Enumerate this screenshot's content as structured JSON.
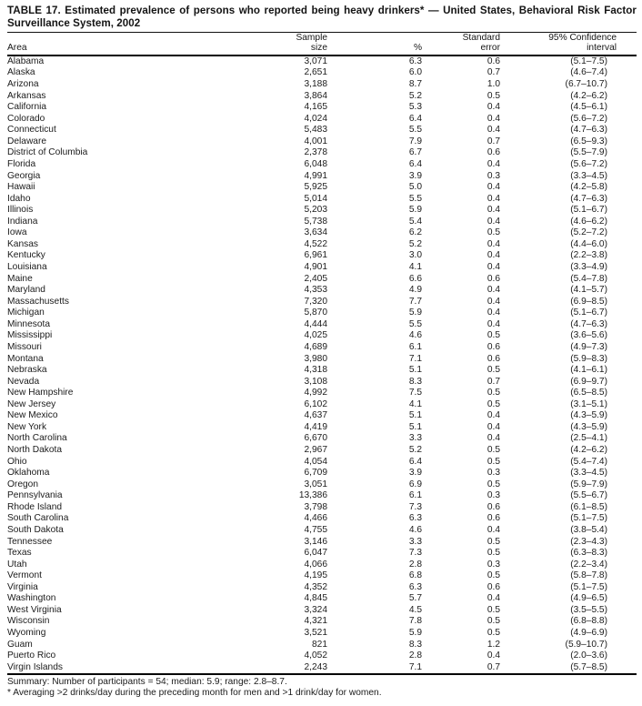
{
  "table": {
    "title_line1": "TABLE 17. Estimated prevalence of persons who reported being heavy drinkers* — United States, Behavioral Risk Factor",
    "title_line2": "Surveillance System, 2002",
    "columns": {
      "area": "Area",
      "sample_l1": "Sample",
      "sample_l2": "size",
      "percent": "%",
      "se_l1": "Standard",
      "se_l2": "error",
      "ci_l1": "95% Confidence",
      "ci_l2": "interval"
    },
    "rows": [
      {
        "area": "Alabama",
        "sample_size": "3,071",
        "percent": "6.3",
        "standard_error": "0.6",
        "confidence_interval": "(5.1–7.5)"
      },
      {
        "area": "Alaska",
        "sample_size": "2,651",
        "percent": "6.0",
        "standard_error": "0.7",
        "confidence_interval": "(4.6–7.4)"
      },
      {
        "area": "Arizona",
        "sample_size": "3,188",
        "percent": "8.7",
        "standard_error": "1.0",
        "confidence_interval": "(6.7–10.7)"
      },
      {
        "area": "Arkansas",
        "sample_size": "3,864",
        "percent": "5.2",
        "standard_error": "0.5",
        "confidence_interval": "(4.2–6.2)"
      },
      {
        "area": "California",
        "sample_size": "4,165",
        "percent": "5.3",
        "standard_error": "0.4",
        "confidence_interval": "(4.5–6.1)"
      },
      {
        "area": "Colorado",
        "sample_size": "4,024",
        "percent": "6.4",
        "standard_error": "0.4",
        "confidence_interval": "(5.6–7.2)"
      },
      {
        "area": "Connecticut",
        "sample_size": "5,483",
        "percent": "5.5",
        "standard_error": "0.4",
        "confidence_interval": "(4.7–6.3)"
      },
      {
        "area": "Delaware",
        "sample_size": "4,001",
        "percent": "7.9",
        "standard_error": "0.7",
        "confidence_interval": "(6.5–9.3)"
      },
      {
        "area": "District of Columbia",
        "sample_size": "2,378",
        "percent": "6.7",
        "standard_error": "0.6",
        "confidence_interval": "(5.5–7.9)"
      },
      {
        "area": "Florida",
        "sample_size": "6,048",
        "percent": "6.4",
        "standard_error": "0.4",
        "confidence_interval": "(5.6–7.2)"
      },
      {
        "area": "Georgia",
        "sample_size": "4,991",
        "percent": "3.9",
        "standard_error": "0.3",
        "confidence_interval": "(3.3–4.5)"
      },
      {
        "area": "Hawaii",
        "sample_size": "5,925",
        "percent": "5.0",
        "standard_error": "0.4",
        "confidence_interval": "(4.2–5.8)"
      },
      {
        "area": "Idaho",
        "sample_size": "5,014",
        "percent": "5.5",
        "standard_error": "0.4",
        "confidence_interval": "(4.7–6.3)"
      },
      {
        "area": "Illinois",
        "sample_size": "5,203",
        "percent": "5.9",
        "standard_error": "0.4",
        "confidence_interval": "(5.1–6.7)"
      },
      {
        "area": "Indiana",
        "sample_size": "5,738",
        "percent": "5.4",
        "standard_error": "0.4",
        "confidence_interval": "(4.6–6.2)"
      },
      {
        "area": "Iowa",
        "sample_size": "3,634",
        "percent": "6.2",
        "standard_error": "0.5",
        "confidence_interval": "(5.2–7.2)"
      },
      {
        "area": "Kansas",
        "sample_size": "4,522",
        "percent": "5.2",
        "standard_error": "0.4",
        "confidence_interval": "(4.4–6.0)"
      },
      {
        "area": "Kentucky",
        "sample_size": "6,961",
        "percent": "3.0",
        "standard_error": "0.4",
        "confidence_interval": "(2.2–3.8)"
      },
      {
        "area": "Louisiana",
        "sample_size": "4,901",
        "percent": "4.1",
        "standard_error": "0.4",
        "confidence_interval": "(3.3–4.9)"
      },
      {
        "area": "Maine",
        "sample_size": "2,405",
        "percent": "6.6",
        "standard_error": "0.6",
        "confidence_interval": "(5.4–7.8)"
      },
      {
        "area": "Maryland",
        "sample_size": "4,353",
        "percent": "4.9",
        "standard_error": "0.4",
        "confidence_interval": "(4.1–5.7)"
      },
      {
        "area": "Massachusetts",
        "sample_size": "7,320",
        "percent": "7.7",
        "standard_error": "0.4",
        "confidence_interval": "(6.9–8.5)"
      },
      {
        "area": "Michigan",
        "sample_size": "5,870",
        "percent": "5.9",
        "standard_error": "0.4",
        "confidence_interval": "(5.1–6.7)"
      },
      {
        "area": "Minnesota",
        "sample_size": "4,444",
        "percent": "5.5",
        "standard_error": "0.4",
        "confidence_interval": "(4.7–6.3)"
      },
      {
        "area": "Mississippi",
        "sample_size": "4,025",
        "percent": "4.6",
        "standard_error": "0.5",
        "confidence_interval": "(3.6–5.6)"
      },
      {
        "area": "Missouri",
        "sample_size": "4,689",
        "percent": "6.1",
        "standard_error": "0.6",
        "confidence_interval": "(4.9–7.3)"
      },
      {
        "area": "Montana",
        "sample_size": "3,980",
        "percent": "7.1",
        "standard_error": "0.6",
        "confidence_interval": "(5.9–8.3)"
      },
      {
        "area": "Nebraska",
        "sample_size": "4,318",
        "percent": "5.1",
        "standard_error": "0.5",
        "confidence_interval": "(4.1–6.1)"
      },
      {
        "area": "Nevada",
        "sample_size": "3,108",
        "percent": "8.3",
        "standard_error": "0.7",
        "confidence_interval": "(6.9–9.7)"
      },
      {
        "area": "New Hampshire",
        "sample_size": "4,992",
        "percent": "7.5",
        "standard_error": "0.5",
        "confidence_interval": "(6.5–8.5)"
      },
      {
        "area": "New Jersey",
        "sample_size": "6,102",
        "percent": "4.1",
        "standard_error": "0.5",
        "confidence_interval": "(3.1–5.1)"
      },
      {
        "area": "New Mexico",
        "sample_size": "4,637",
        "percent": "5.1",
        "standard_error": "0.4",
        "confidence_interval": "(4.3–5.9)"
      },
      {
        "area": "New York",
        "sample_size": "4,419",
        "percent": "5.1",
        "standard_error": "0.4",
        "confidence_interval": "(4.3–5.9)"
      },
      {
        "area": "North Carolina",
        "sample_size": "6,670",
        "percent": "3.3",
        "standard_error": "0.4",
        "confidence_interval": "(2.5–4.1)"
      },
      {
        "area": "North Dakota",
        "sample_size": "2,967",
        "percent": "5.2",
        "standard_error": "0.5",
        "confidence_interval": "(4.2–6.2)"
      },
      {
        "area": "Ohio",
        "sample_size": "4,054",
        "percent": "6.4",
        "standard_error": "0.5",
        "confidence_interval": "(5.4–7.4)"
      },
      {
        "area": "Oklahoma",
        "sample_size": "6,709",
        "percent": "3.9",
        "standard_error": "0.3",
        "confidence_interval": "(3.3–4.5)"
      },
      {
        "area": "Oregon",
        "sample_size": "3,051",
        "percent": "6.9",
        "standard_error": "0.5",
        "confidence_interval": "(5.9–7.9)"
      },
      {
        "area": "Pennsylvania",
        "sample_size": "13,386",
        "percent": "6.1",
        "standard_error": "0.3",
        "confidence_interval": "(5.5–6.7)"
      },
      {
        "area": "Rhode Island",
        "sample_size": "3,798",
        "percent": "7.3",
        "standard_error": "0.6",
        "confidence_interval": "(6.1–8.5)"
      },
      {
        "area": "South Carolina",
        "sample_size": "4,466",
        "percent": "6.3",
        "standard_error": "0.6",
        "confidence_interval": "(5.1–7.5)"
      },
      {
        "area": "South Dakota",
        "sample_size": "4,755",
        "percent": "4.6",
        "standard_error": "0.4",
        "confidence_interval": "(3.8–5.4)"
      },
      {
        "area": "Tennessee",
        "sample_size": "3,146",
        "percent": "3.3",
        "standard_error": "0.5",
        "confidence_interval": "(2.3–4.3)"
      },
      {
        "area": "Texas",
        "sample_size": "6,047",
        "percent": "7.3",
        "standard_error": "0.5",
        "confidence_interval": "(6.3–8.3)"
      },
      {
        "area": "Utah",
        "sample_size": "4,066",
        "percent": "2.8",
        "standard_error": "0.3",
        "confidence_interval": "(2.2–3.4)"
      },
      {
        "area": "Vermont",
        "sample_size": "4,195",
        "percent": "6.8",
        "standard_error": "0.5",
        "confidence_interval": "(5.8–7.8)"
      },
      {
        "area": "Virginia",
        "sample_size": "4,352",
        "percent": "6.3",
        "standard_error": "0.6",
        "confidence_interval": "(5.1–7.5)"
      },
      {
        "area": "Washington",
        "sample_size": "4,845",
        "percent": "5.7",
        "standard_error": "0.4",
        "confidence_interval": "(4.9–6.5)"
      },
      {
        "area": "West Virginia",
        "sample_size": "3,324",
        "percent": "4.5",
        "standard_error": "0.5",
        "confidence_interval": "(3.5–5.5)"
      },
      {
        "area": "Wisconsin",
        "sample_size": "4,321",
        "percent": "7.8",
        "standard_error": "0.5",
        "confidence_interval": "(6.8–8.8)"
      },
      {
        "area": "Wyoming",
        "sample_size": "3,521",
        "percent": "5.9",
        "standard_error": "0.5",
        "confidence_interval": "(4.9–6.9)"
      },
      {
        "area": "Guam",
        "sample_size": "821",
        "percent": "8.3",
        "standard_error": "1.2",
        "confidence_interval": "(5.9–10.7)"
      },
      {
        "area": "Puerto Rico",
        "sample_size": "4,052",
        "percent": "2.8",
        "standard_error": "0.4",
        "confidence_interval": "(2.0–3.6)"
      },
      {
        "area": "Virgin Islands",
        "sample_size": "2,243",
        "percent": "7.1",
        "standard_error": "0.7",
        "confidence_interval": "(5.7–8.5)"
      }
    ],
    "summary": "Summary: Number of participants = 54; median: 5.9; range: 2.8–8.7.",
    "footnote": "* Averaging >2 drinks/day during the preceding month for men and >1 drink/day for women."
  }
}
